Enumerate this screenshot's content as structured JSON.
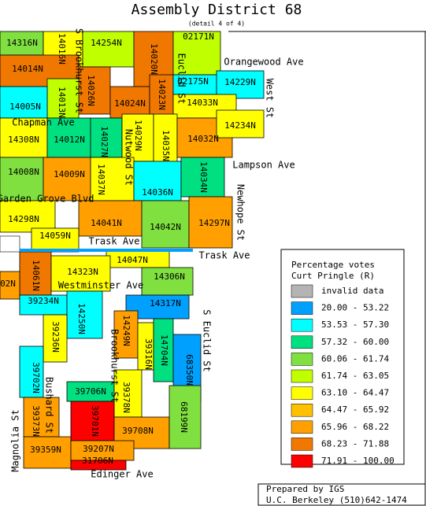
{
  "title": "Assembly District 68",
  "subtitle": "(detail 4 of 4)",
  "precincts": [
    {
      "label": "14316N",
      "color": "#80e040"
    },
    {
      "label": "14016N",
      "color": "#ffff00"
    },
    {
      "label": "14254N",
      "color": "#c0ff00"
    },
    {
      "label": "14020N",
      "color": "#f07800"
    },
    {
      "label": "02171N",
      "color": "#c0ff00"
    },
    {
      "label": "14014N",
      "color": "#f07800"
    },
    {
      "label": "14026N",
      "color": "#f07800"
    },
    {
      "label": "14013N",
      "color": "#c0ff00"
    },
    {
      "label": "14005N",
      "color": "#00ffff"
    },
    {
      "label": "14024N",
      "color": "#f07800"
    },
    {
      "label": "14023N",
      "color": "#f07800"
    },
    {
      "label": "02175N",
      "color": "#00ffff"
    },
    {
      "label": "14229N",
      "color": "#00ffff"
    },
    {
      "label": "14033N",
      "color": "#ffff00"
    },
    {
      "label": "14308N",
      "color": "#ffff00"
    },
    {
      "label": "14012N",
      "color": "#00e080"
    },
    {
      "label": "14027N",
      "color": "#00e080"
    },
    {
      "label": "14029N",
      "color": "#ffff00"
    },
    {
      "label": "14035N",
      "color": "#ffff00"
    },
    {
      "label": "14032N",
      "color": "#ffa000"
    },
    {
      "label": "14234N",
      "color": "#ffff00"
    },
    {
      "label": "14008N",
      "color": "#80e040"
    },
    {
      "label": "14009N",
      "color": "#ffa000"
    },
    {
      "label": "14037N",
      "color": "#ffff00"
    },
    {
      "label": "14036N",
      "color": "#00ffff"
    },
    {
      "label": "14034N",
      "color": "#00e080"
    },
    {
      "label": "14298N",
      "color": "#ffff00"
    },
    {
      "label": "14041N",
      "color": "#ffa000"
    },
    {
      "label": "14042N",
      "color": "#80e040"
    },
    {
      "label": "14297N",
      "color": "#ffa000"
    },
    {
      "label": "14059N",
      "color": "#ffff00"
    },
    {
      "label": "14047N",
      "color": "#ffff00"
    },
    {
      "label": "14061N",
      "color": "#f07800"
    },
    {
      "label": "14323N",
      "color": "#ffff00"
    },
    {
      "label": "14306N",
      "color": "#80e040"
    },
    {
      "label": "02N",
      "color": "#ffa000"
    },
    {
      "label": "39234N",
      "color": "#00ffff"
    },
    {
      "label": "14250N",
      "color": "#00ffff"
    },
    {
      "label": "14317N",
      "color": "#00a0ff"
    },
    {
      "label": "14249N",
      "color": "#ffa000"
    },
    {
      "label": "39236N",
      "color": "#ffff00"
    },
    {
      "label": "39316N",
      "color": "#ffff00"
    },
    {
      "label": "14704N",
      "color": "#00e080"
    },
    {
      "label": "68350N",
      "color": "#00a0ff"
    },
    {
      "label": "39702N",
      "color": "#00ffff"
    },
    {
      "label": "39706N",
      "color": "#00e080"
    },
    {
      "label": "39378N",
      "color": "#ffff00"
    },
    {
      "label": "39373N",
      "color": "#ffa000"
    },
    {
      "label": "39701N",
      "color": "#ff0000"
    },
    {
      "label": "39708N",
      "color": "#ffa000"
    },
    {
      "label": "68199N",
      "color": "#80e040"
    },
    {
      "label": "39359N",
      "color": "#ffa000"
    },
    {
      "label": "39207N",
      "color": "#ffa000"
    },
    {
      "label": "31706N",
      "color": "#ff0000"
    }
  ],
  "streets": [
    "Orangewood Ave",
    "West St",
    "Chapman Ave",
    "Lampson Ave",
    "Garden Grove Blvd",
    "Newhope St",
    "Nutwood St",
    "Trask Ave",
    "Trask Ave",
    "Westminster Ave",
    "S Euclid St",
    "Bushard St",
    "Magnolia St",
    "Edinger Ave",
    "S Brookhurst St",
    "Euclid St",
    "Brookhurst St"
  ],
  "legend": {
    "title": "Percentage votes",
    "subtitle": "Curt Pringle (R)",
    "items": [
      {
        "label": "invalid data",
        "color": "#b4b4b4"
      },
      {
        "label": "20.00 - 53.22",
        "color": "#00a0ff"
      },
      {
        "label": "53.53 - 57.30",
        "color": "#00ffff"
      },
      {
        "label": "57.32 - 60.00",
        "color": "#00e080"
      },
      {
        "label": "60.06 - 61.74",
        "color": "#80e040"
      },
      {
        "label": "61.74 - 63.05",
        "color": "#c0ff00"
      },
      {
        "label": "63.10 - 64.47",
        "color": "#ffff00"
      },
      {
        "label": "64.47 - 65.92",
        "color": "#ffc000"
      },
      {
        "label": "65.96 - 68.22",
        "color": "#ffa000"
      },
      {
        "label": "68.23 - 71.88",
        "color": "#f07800"
      },
      {
        "label": "71.91 - 100.00",
        "color": "#ff0000"
      }
    ]
  },
  "credit": {
    "line1": "Prepared by IGS",
    "line2": "U.C. Berkeley (510)642-1474"
  }
}
